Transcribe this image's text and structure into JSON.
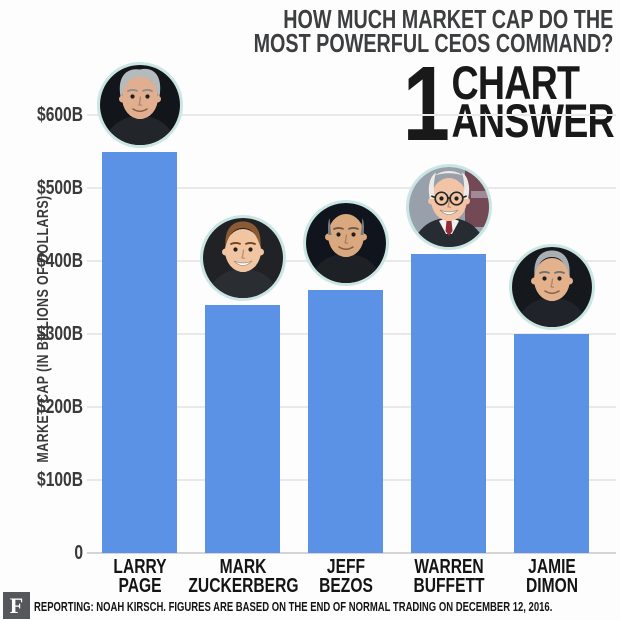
{
  "header": {
    "title_line1": "HOW MUCH MARKET CAP DO THE",
    "title_line2": "MOST POWERFUL CEOS COMMAND?",
    "brand": {
      "number": "1",
      "word_top": "CHART",
      "word_bottom": "ANSWER"
    }
  },
  "chart_data": {
    "type": "bar",
    "title": "How much market cap do the most powerful CEOs command?",
    "categories": [
      "Larry Page",
      "Mark Zuckerberg",
      "Jeff Bezos",
      "Warren Buffett",
      "Jamie Dimon"
    ],
    "values": [
      550,
      340,
      360,
      410,
      300
    ],
    "unit": "billions of USD",
    "xlabel": "",
    "ylabel": "MARKET CAP (IN BILLIONS OF DOLLARS)",
    "ylim": [
      0,
      620
    ],
    "grid": true,
    "legend": false,
    "yticks": [
      {
        "value": 600,
        "label": "$600B"
      },
      {
        "value": 500,
        "label": "$500B"
      },
      {
        "value": 400,
        "label": "$400B"
      },
      {
        "value": 300,
        "label": "$300B"
      },
      {
        "value": 200,
        "label": "$200B"
      },
      {
        "value": 100,
        "label": "$100B"
      },
      {
        "value": 0,
        "label": "0"
      }
    ]
  },
  "bars": [
    {
      "id": "larry-page",
      "name_line1": "LARRY",
      "name_line2": "PAGE",
      "value": 550,
      "avatar": {
        "person": "larry-page",
        "bg": "#121519",
        "skin": "#e2ae90",
        "hair": "#b5babd",
        "hair_style": "tousled",
        "glasses": false,
        "teeth": false,
        "suit": "#22262b",
        "brow": "#8b8f92"
      }
    },
    {
      "id": "mark-zuckerberg",
      "name_line1": "MARK",
      "name_line2": "ZUCKERBERG",
      "value": 340,
      "avatar": {
        "person": "mark-zuckerberg",
        "bg": "#202225",
        "skin": "#f1c5a1",
        "hair": "#8a5a33",
        "hair_style": "short",
        "glasses": false,
        "teeth": true,
        "suit": "#2a2d31",
        "brow": "#6e451f"
      }
    },
    {
      "id": "jeff-bezos",
      "name_line1": "JEFF",
      "name_line2": "BEZOS",
      "value": 360,
      "avatar": {
        "person": "jeff-bezos",
        "bg": "#10141c",
        "skin": "#d9a87f",
        "hair": "#75797c",
        "hair_style": "bald",
        "glasses": false,
        "teeth": false,
        "suit": "#1d2126",
        "brow": "#6b5b4a"
      }
    },
    {
      "id": "warren-buffett",
      "name_line1": "WARREN",
      "name_line2": "BUFFETT",
      "value": 410,
      "avatar": {
        "person": "warren-buffett",
        "bg": "#97a0ab",
        "bg_accent": "#6d3947",
        "skin": "#f2c3a4",
        "hair": "#eceae6",
        "hair_style": "wisps",
        "glasses": true,
        "teeth": true,
        "suit": "#272b32",
        "shirt": "#f3f1ed",
        "tie": "#932c36",
        "brow": "#e8e6e2"
      }
    },
    {
      "id": "jamie-dimon",
      "name_line1": "JAMIE",
      "name_line2": "DIMON",
      "value": 300,
      "avatar": {
        "person": "jamie-dimon",
        "bg": "#15181c",
        "skin": "#e3b18c",
        "hair": "#a9aeb2",
        "hair_style": "short",
        "glasses": false,
        "teeth": false,
        "suit": "#20242a",
        "brow": "#6f7478"
      }
    }
  ],
  "footer": {
    "logo_letter": "F",
    "text": "REPORTING: NOAH KIRSCH. FIGURES ARE BASED ON THE END OF NORMAL TRADING ON DECEMBER 12, 2016."
  },
  "colors": {
    "background": "#fdfdfd",
    "bar": "#5b92e6",
    "avatar_ring": "#c9e6e3",
    "gridline": "#e9e9e9",
    "axis_line": "#d4d4d4",
    "title_text": "#3d3e40",
    "brand_text": "#191919",
    "tick_text": "#3a3a3a",
    "name_text": "#141414",
    "footer_text": "#141414",
    "footer_logo_bg": "#55575a"
  }
}
